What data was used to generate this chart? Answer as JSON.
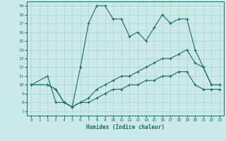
{
  "xlabel": "Humidex (Indice chaleur)",
  "bg_color": "#cce9e9",
  "line_color": "#1a6b6b",
  "grid_color": "#aad4d4",
  "xlim": [
    -0.5,
    23.5
  ],
  "ylim": [
    6.5,
    19.5
  ],
  "xticks": [
    0,
    1,
    2,
    3,
    4,
    5,
    6,
    7,
    8,
    9,
    10,
    11,
    12,
    13,
    14,
    15,
    16,
    17,
    18,
    19,
    20,
    21,
    22,
    23
  ],
  "yticks": [
    7,
    8,
    9,
    10,
    11,
    12,
    13,
    14,
    15,
    16,
    17,
    18,
    19
  ],
  "line1_x": [
    0,
    2,
    3,
    4,
    5,
    6,
    7,
    8,
    9,
    10,
    11,
    12,
    13,
    14,
    15,
    16,
    17,
    18,
    19,
    20,
    21,
    22,
    23
  ],
  "line1_y": [
    10,
    11,
    8,
    8,
    7.5,
    12,
    17,
    19,
    19,
    17.5,
    17.5,
    15.5,
    16,
    15,
    16.5,
    18,
    17,
    17.5,
    17.5,
    14,
    12,
    10,
    10
  ],
  "line2_x": [
    0,
    2,
    3,
    4,
    5,
    6,
    7,
    8,
    9,
    10,
    11,
    12,
    13,
    14,
    15,
    16,
    17,
    18,
    19,
    20,
    21,
    22,
    23
  ],
  "line2_y": [
    10,
    10,
    9.5,
    8,
    7.5,
    8,
    8.5,
    9.5,
    10,
    10.5,
    11,
    11,
    11.5,
    12,
    12.5,
    13,
    13,
    13.5,
    14,
    12.5,
    12,
    10,
    10
  ],
  "line3_x": [
    0,
    2,
    3,
    4,
    5,
    6,
    7,
    8,
    9,
    10,
    11,
    12,
    13,
    14,
    15,
    16,
    17,
    18,
    19,
    20,
    21,
    22,
    23
  ],
  "line3_y": [
    10,
    10,
    9.5,
    8,
    7.5,
    8,
    8,
    8.5,
    9,
    9.5,
    9.5,
    10,
    10,
    10.5,
    10.5,
    11,
    11,
    11.5,
    11.5,
    10,
    9.5,
    9.5,
    9.5
  ]
}
